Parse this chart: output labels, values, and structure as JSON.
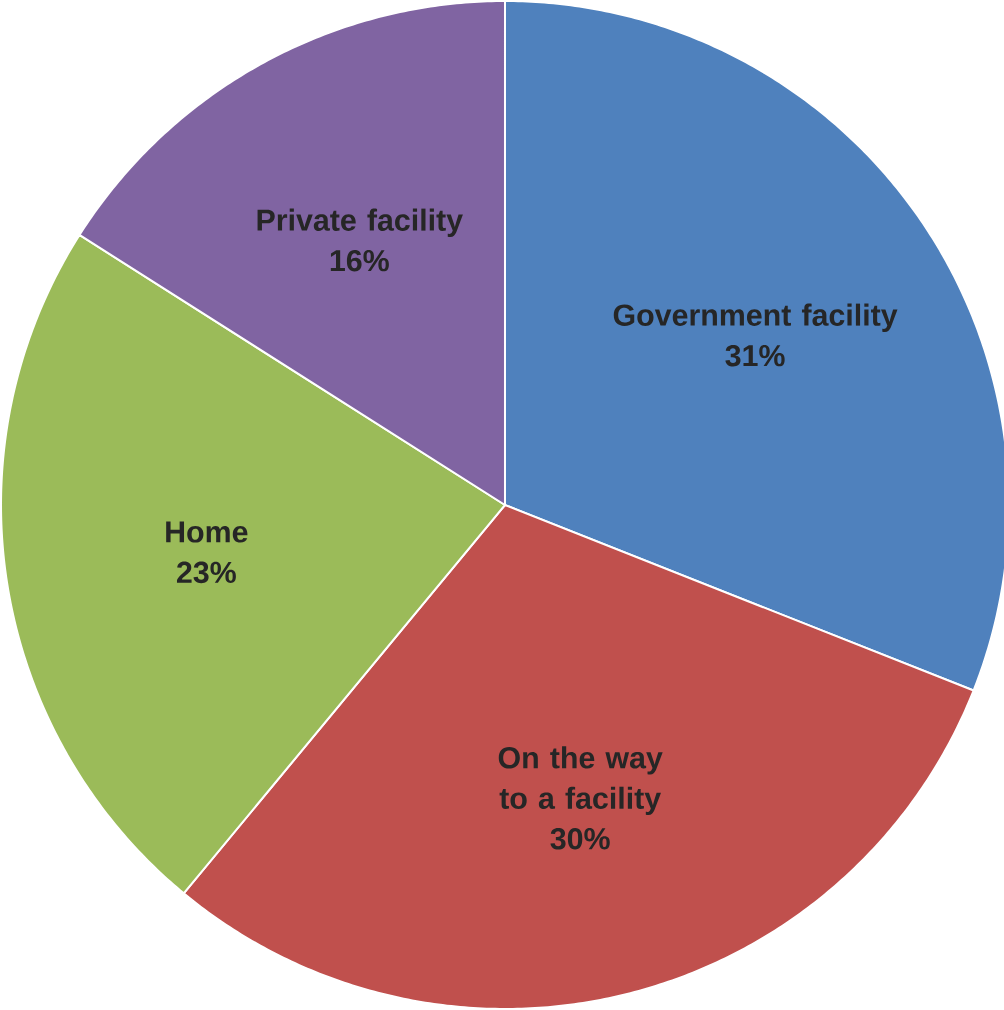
{
  "chart_data": {
    "type": "pie",
    "categories": [
      "Government facility",
      "On the way to a facility",
      "Home",
      "Private facility"
    ],
    "values": [
      31,
      30,
      23,
      16
    ],
    "colors": [
      "#4f81bd",
      "#c0504d",
      "#9bbb59",
      "#8064a2"
    ],
    "value_labels": [
      "31%",
      "30%",
      "23%",
      "16%"
    ]
  }
}
